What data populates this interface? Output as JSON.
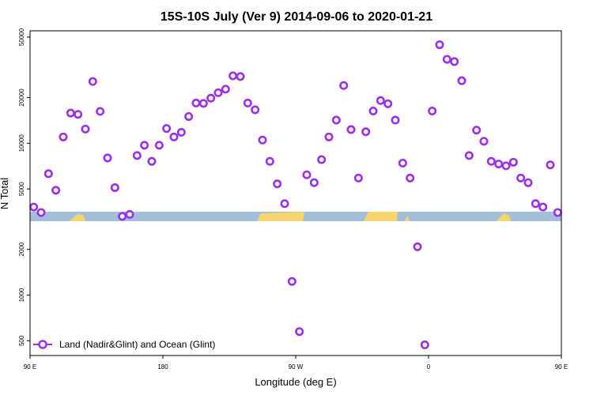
{
  "chart_data": {
    "type": "scatter",
    "title": "15S-10S July (Ver 9)   2014-09-06 to 2020-01-21",
    "xlabel": "Longitude (deg E)",
    "ylabel": "N Total",
    "xlim": [
      90,
      450
    ],
    "ylim_log": [
      400,
      55000
    ],
    "y_scale": "log",
    "x_ticks": [
      {
        "value": 90,
        "label": "90 E"
      },
      {
        "value": 180,
        "label": "180"
      },
      {
        "value": 270,
        "label": "90 W"
      },
      {
        "value": 360,
        "label": "0"
      },
      {
        "value": 450,
        "label": "90 E"
      }
    ],
    "y_ticks": [
      {
        "value": 500,
        "label": "500"
      },
      {
        "value": 1000,
        "label": "1000"
      },
      {
        "value": 2000,
        "label": "2000"
      },
      {
        "value": 5000,
        "label": "5000"
      },
      {
        "value": 10000,
        "label": "10000"
      },
      {
        "value": 20000,
        "label": "20000"
      },
      {
        "value": 50000,
        "label": "50000"
      }
    ],
    "legend": {
      "position": "bottom-left",
      "label": "Land (Nadir&Glint) and Ocean (Glint)"
    },
    "colors": {
      "series": "#9b30e8",
      "ocean_band": "#a3bfdc",
      "land_band": "#f5d56e"
    },
    "series": [
      {
        "name": "Land (Nadir&Glint) and Ocean (Glint)",
        "x": [
          92.5,
          97.5,
          102.5,
          107.5,
          112.5,
          117.5,
          122.5,
          127.5,
          132.5,
          137.5,
          142.5,
          147.5,
          152.5,
          157.5,
          162.5,
          167.5,
          172.5,
          177.5,
          182.5,
          187.5,
          192.5,
          197.5,
          202.5,
          207.5,
          212.5,
          217.5,
          222.5,
          227.5,
          232.5,
          237.5,
          242.5,
          247.5,
          252.5,
          257.5,
          262.5,
          267.5,
          272.5,
          277.5,
          282.5,
          287.5,
          292.5,
          297.5,
          302.5,
          307.5,
          312.5,
          317.5,
          322.5,
          327.5,
          332.5,
          337.5,
          342.5,
          347.5,
          352.5,
          357.5,
          362.5,
          367.5,
          372.5,
          377.5,
          382.5,
          387.5,
          392.5,
          397.5,
          402.5,
          407.5,
          412.5,
          417.5,
          422.5,
          427.5,
          432.5,
          437.5,
          442.5,
          447.5
        ],
        "y": [
          3800,
          3500,
          6300,
          4900,
          11000,
          15800,
          15500,
          12400,
          25500,
          16200,
          8000,
          5100,
          3300,
          3400,
          8300,
          9700,
          7600,
          9700,
          12500,
          11000,
          11800,
          15000,
          18400,
          18300,
          19800,
          21500,
          22700,
          27800,
          27500,
          18400,
          16600,
          10500,
          7600,
          5400,
          4000,
          1230,
          575,
          6200,
          5500,
          7800,
          11000,
          14200,
          24000,
          12300,
          5900,
          11900,
          16300,
          19100,
          18200,
          14200,
          7400,
          5900,
          2080,
          470,
          16300,
          44500,
          35700,
          34500,
          25800,
          8300,
          12200,
          10300,
          7600,
          7300,
          7100,
          7500,
          5900,
          5500,
          4000,
          3800,
          7200,
          3500
        ]
      }
    ]
  }
}
